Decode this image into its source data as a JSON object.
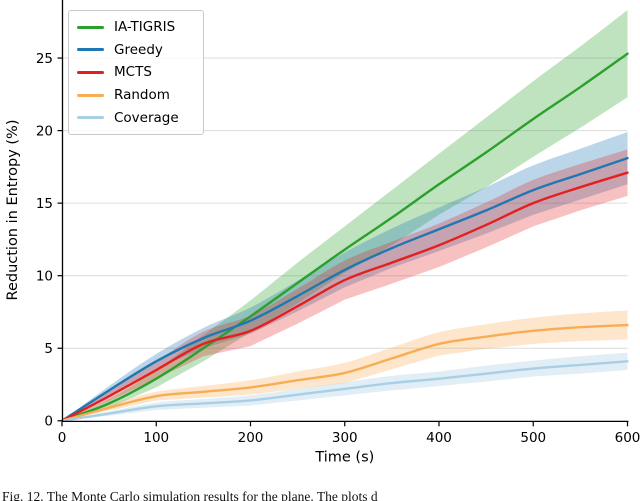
{
  "figure": {
    "caption": "Fig. 12.  The Monte Carlo simulation results for the plane.  The plots d"
  },
  "chart_data": {
    "type": "line",
    "title": "",
    "xlabel": "Time (s)",
    "ylabel": "Reduction in Entropy (%)",
    "xlim": [
      0,
      600
    ],
    "ylim": [
      0,
      29
    ],
    "xticks": [
      0,
      100,
      200,
      300,
      400,
      500,
      600
    ],
    "yticks": [
      0,
      5,
      10,
      15,
      20,
      25
    ],
    "grid": "horizontal",
    "grid_color": "#dcdcdc",
    "legend_position": "upper-left",
    "x": [
      0,
      50,
      100,
      150,
      200,
      250,
      300,
      350,
      400,
      450,
      500,
      550,
      600
    ],
    "series": [
      {
        "name": "IA-TIGRIS",
        "color": "#2ca02c",
        "band_alpha": 0.3,
        "values": [
          0,
          1.2,
          2.9,
          5.0,
          7.2,
          9.5,
          11.8,
          14.0,
          16.3,
          18.5,
          20.8,
          23.0,
          25.3
        ],
        "band_halfwidth": [
          0,
          0.3,
          0.6,
          0.9,
          1.1,
          1.4,
          1.6,
          1.9,
          2.1,
          2.4,
          2.6,
          2.8,
          3.0
        ]
      },
      {
        "name": "Greedy",
        "color": "#1f77b4",
        "band_alpha": 0.3,
        "values": [
          0,
          2.1,
          4.1,
          5.7,
          6.9,
          8.6,
          10.4,
          11.9,
          13.2,
          14.5,
          15.9,
          17.0,
          18.1
        ],
        "band_halfwidth": [
          0,
          0.3,
          0.5,
          0.7,
          0.9,
          1.05,
          1.2,
          1.35,
          1.5,
          1.6,
          1.7,
          1.75,
          1.8
        ]
      },
      {
        "name": "MCTS",
        "color": "#e3201f",
        "band_alpha": 0.28,
        "values": [
          0,
          1.7,
          3.5,
          5.3,
          6.2,
          7.9,
          9.7,
          10.9,
          12.1,
          13.5,
          15.0,
          16.1,
          17.1
        ],
        "band_halfwidth": [
          0,
          0.35,
          0.6,
          0.85,
          1.05,
          1.2,
          1.35,
          1.45,
          1.5,
          1.55,
          1.6,
          1.6,
          1.6
        ]
      },
      {
        "name": "Random",
        "color": "#f8ad54",
        "band_alpha": 0.3,
        "values": [
          0,
          0.9,
          1.7,
          2.0,
          2.3,
          2.8,
          3.3,
          4.3,
          5.3,
          5.8,
          6.2,
          6.45,
          6.6
        ],
        "band_halfwidth": [
          0,
          0.2,
          0.3,
          0.4,
          0.5,
          0.6,
          0.7,
          0.75,
          0.8,
          0.85,
          0.9,
          0.95,
          1.0
        ]
      },
      {
        "name": "Coverage",
        "color": "#a9cfe5",
        "band_alpha": 0.35,
        "values": [
          0,
          0.5,
          1.0,
          1.2,
          1.4,
          1.8,
          2.2,
          2.6,
          2.9,
          3.25,
          3.6,
          3.85,
          4.1
        ],
        "band_halfwidth": [
          0,
          0.15,
          0.25,
          0.3,
          0.35,
          0.4,
          0.45,
          0.5,
          0.5,
          0.55,
          0.55,
          0.6,
          0.6
        ]
      }
    ]
  }
}
